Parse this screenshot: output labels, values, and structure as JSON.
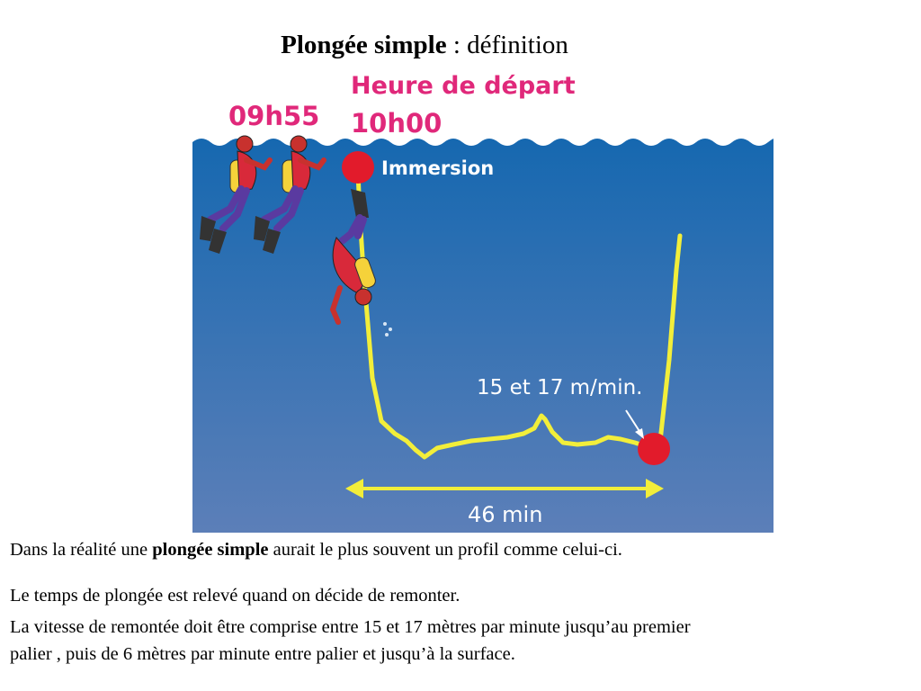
{
  "title": {
    "bold": "Plongée simple",
    "rest": " : définition"
  },
  "labels": {
    "heure_depart": "Heure de départ",
    "heure_depart_time": "10h00",
    "early_time": "09h55",
    "immersion": "Immersion",
    "speed": "15 et 17 m/min.",
    "duration": "46 min"
  },
  "colors": {
    "water_top": "#1668b0",
    "water_bottom": "#5c7fb8",
    "profile_line": "#f2ee3a",
    "marker": "#e21b2b",
    "label_pink": "#e0287a"
  },
  "caption": {
    "line1_pre": "Dans la réalité une ",
    "line1_bold": "plongée simple",
    "line1_post": " aurait le plus souvent un profil comme celui-ci.",
    "line2": "Le temps de plongée est relevé quand on décide de remonter.",
    "line3": "La vitesse de remontée doit être comprise entre 15 et 17 mètres par minute jusqu’au premier",
    "line4": "palier , puis de 6 mètres par minute entre palier et jusqu’à la surface."
  }
}
